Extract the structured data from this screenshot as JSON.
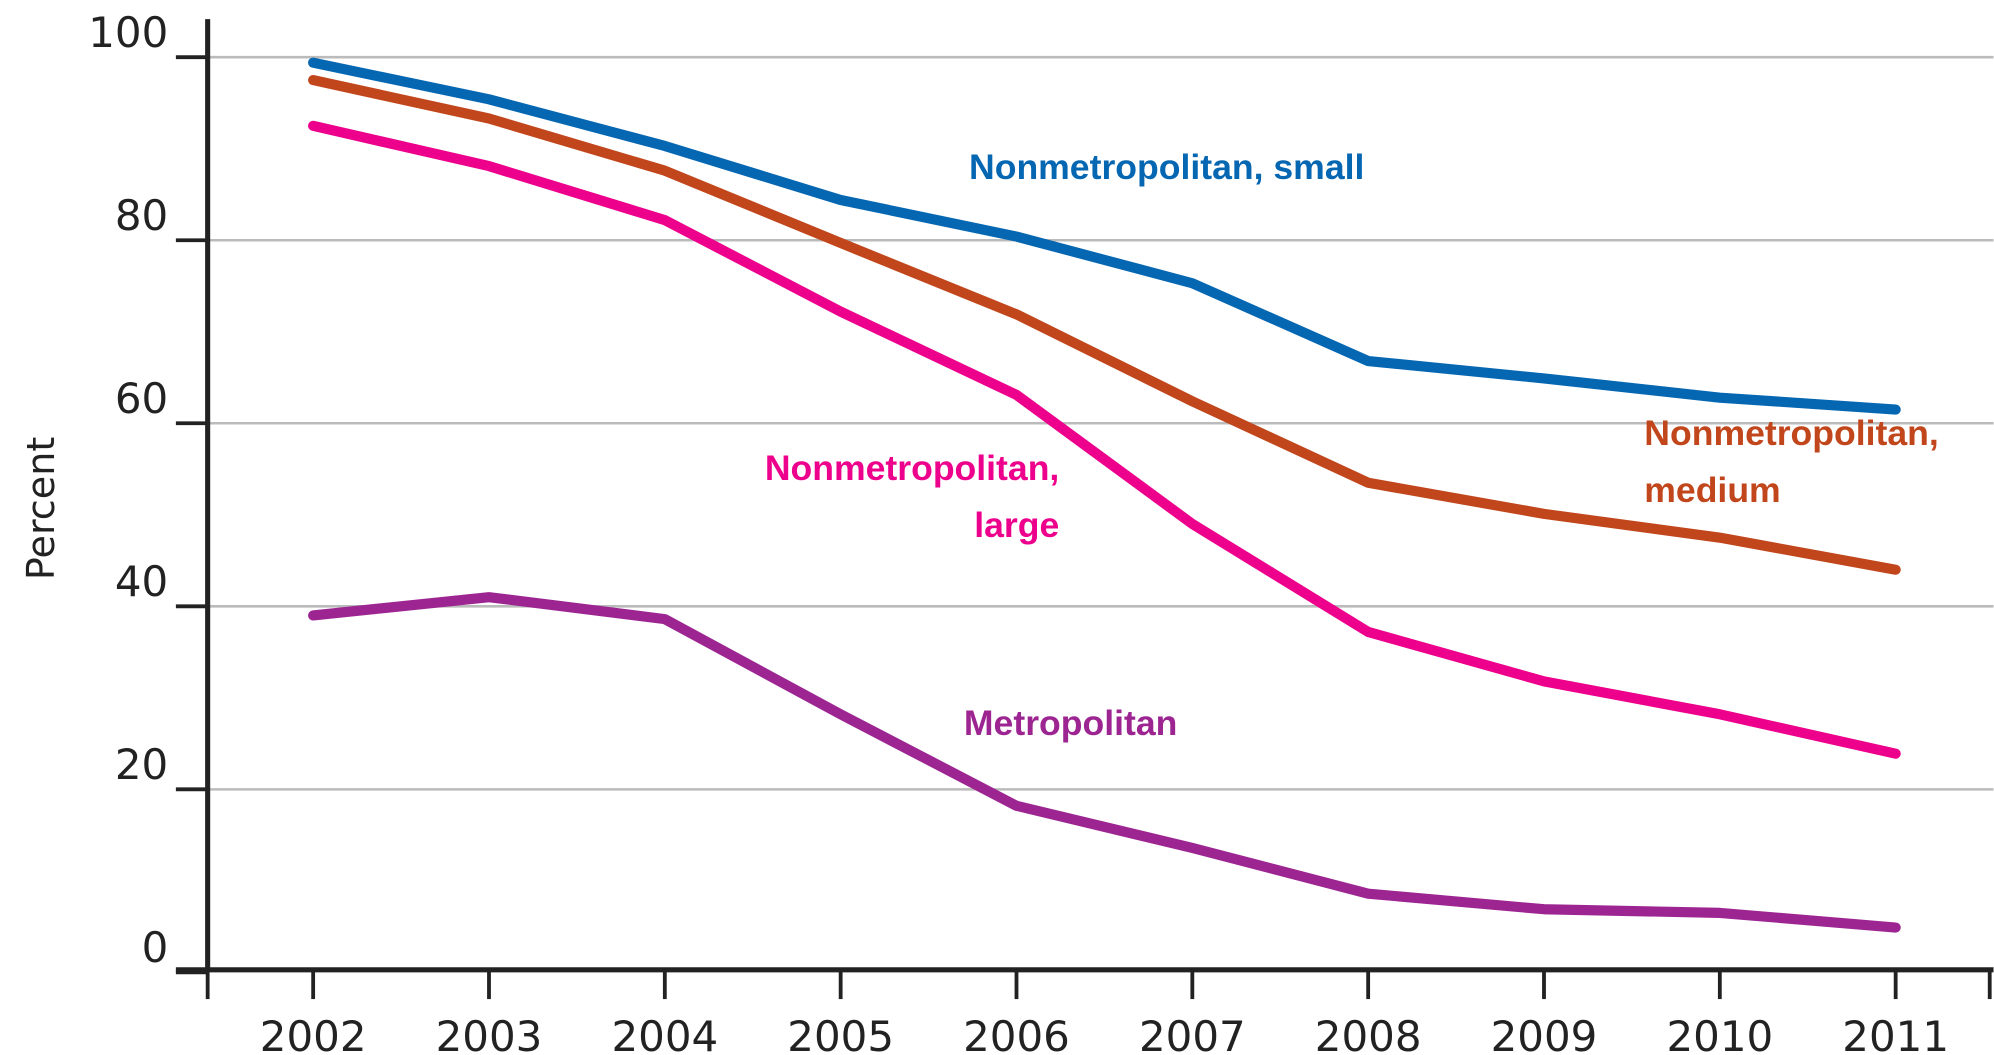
{
  "chart_data": {
    "type": "line",
    "y_label": "Percent",
    "categories": [
      "2002",
      "2003",
      "2004",
      "2005",
      "2006",
      "2007",
      "2008",
      "2009",
      "2010",
      "2011"
    ],
    "series": [
      {
        "name": "Nonmetropolitan, small",
        "color": "#0566b2",
        "values": [
          99.4,
          95.4,
          90.3,
          84.4,
          80.4,
          75.3,
          66.8,
          64.9,
          62.8,
          61.5
        ]
      },
      {
        "name": "Nonmetropolitan, medium",
        "color": "#c1461c",
        "values": [
          97.5,
          93.3,
          87.6,
          79.7,
          71.9,
          62.4,
          53.5,
          50.1,
          47.5,
          44.0
        ]
      },
      {
        "name": "Nonmetropolitan, large",
        "color": "#ec008c",
        "values": [
          92.5,
          88.1,
          82.2,
          72.2,
          63.1,
          49.0,
          37.2,
          31.8,
          28.2,
          23.9
        ]
      },
      {
        "name": "Metropolitan",
        "color": "#9c2592",
        "values": [
          39.0,
          41.0,
          38.6,
          28.2,
          18.2,
          13.6,
          8.6,
          6.9,
          6.5,
          4.9
        ]
      }
    ],
    "ylim": [
      0,
      100
    ],
    "yticks": [
      0,
      20,
      40,
      60,
      80,
      100
    ],
    "grid": true
  }
}
